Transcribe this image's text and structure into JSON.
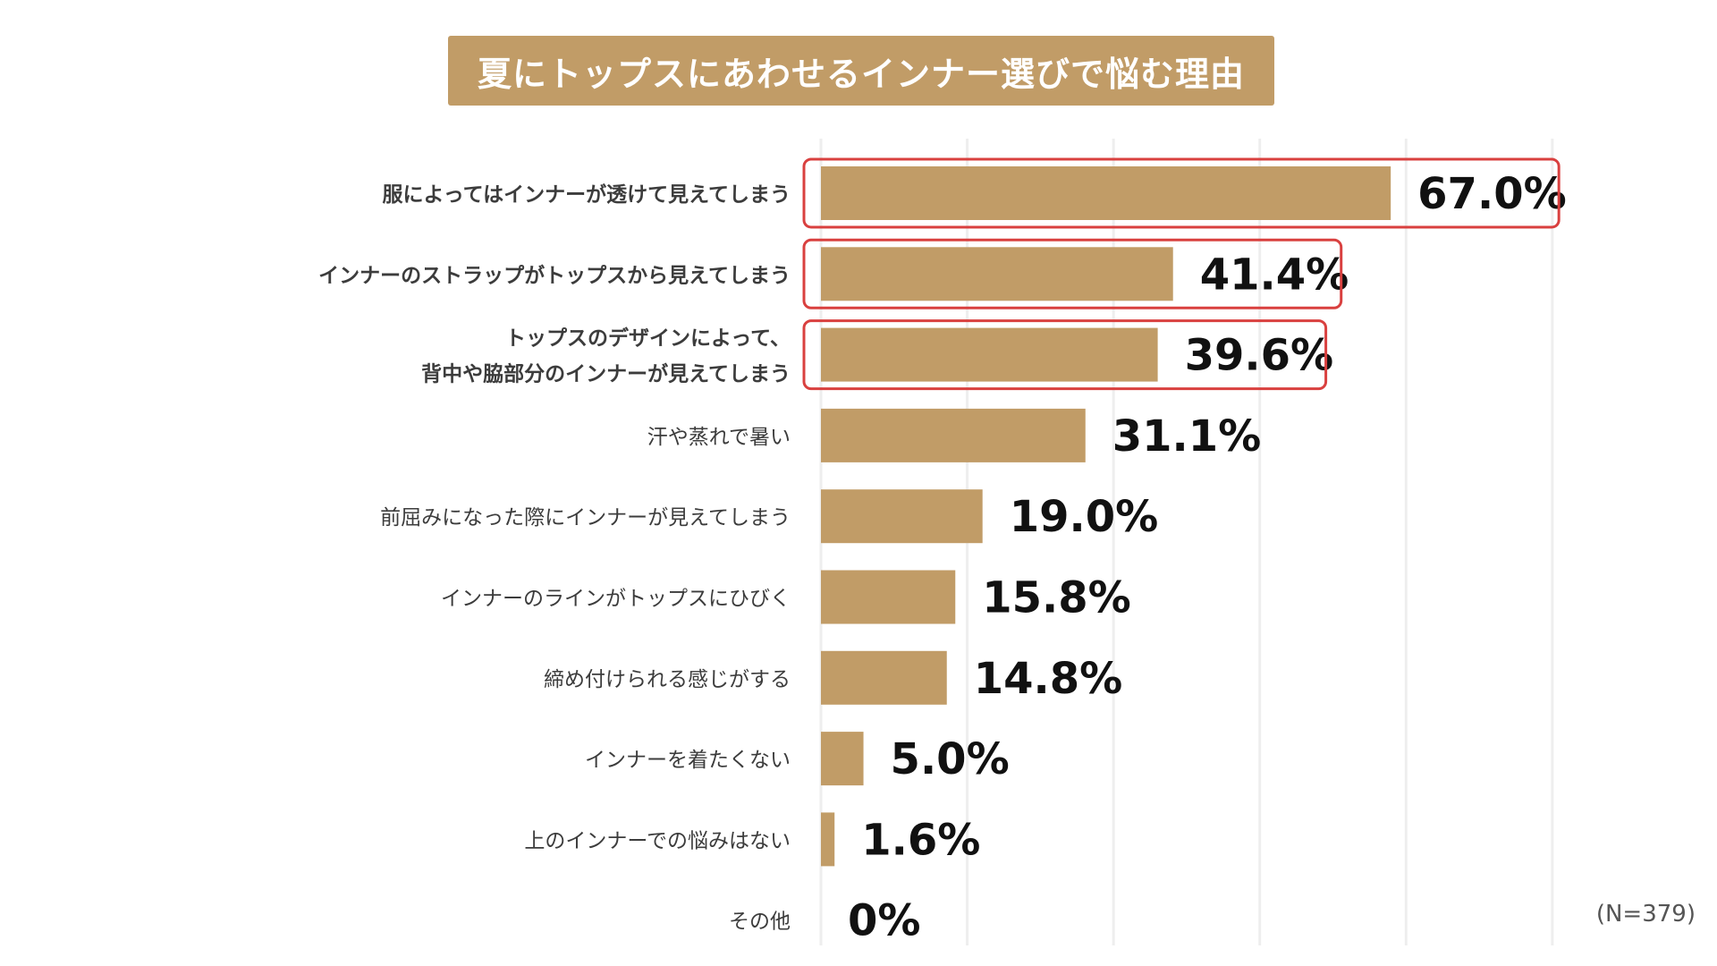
{
  "chart_data": {
    "type": "bar",
    "orientation": "horizontal",
    "title": "夏にトップスにあわせるインナー選びで悩む理由",
    "note": "(N=379)",
    "unit": "%",
    "xlim": [
      0,
      100
    ],
    "grid": true,
    "categories": [
      [
        "服によってはインナーが透けて見えてしまう"
      ],
      [
        "インナーのストラップがトップスから見えてしまう"
      ],
      [
        "トップスのデザインによって、",
        "背中や脇部分のインナーが見えてしまう"
      ],
      [
        "汗や蒸れで暑い"
      ],
      [
        "前屈みになった際にインナーが見えてしまう"
      ],
      [
        "インナーのラインがトップスにひびく"
      ],
      [
        "締め付けられる感じがする"
      ],
      [
        "インナーを着たくない"
      ],
      [
        "上のインナーでの悩みはない"
      ],
      [
        "その他"
      ]
    ],
    "values": [
      67.0,
      41.4,
      39.6,
      31.1,
      19.0,
      15.8,
      14.8,
      5.0,
      1.6,
      0
    ],
    "value_labels": [
      "67.0%",
      "41.4%",
      "39.6%",
      "31.1%",
      "19.0%",
      "15.8%",
      "14.8%",
      "5.0%",
      "1.6%",
      "0%"
    ],
    "emphasized": [
      true,
      true,
      true,
      false,
      false,
      false,
      false,
      false,
      false,
      false
    ]
  },
  "colors": {
    "bar": "#c19c67",
    "title_background": "#c19c67",
    "title_text": "#ffffff",
    "highlight_border": "#d9403f",
    "grid": "#eeeeee",
    "category_text": "#3c3c3c",
    "value_text": "#111111"
  }
}
